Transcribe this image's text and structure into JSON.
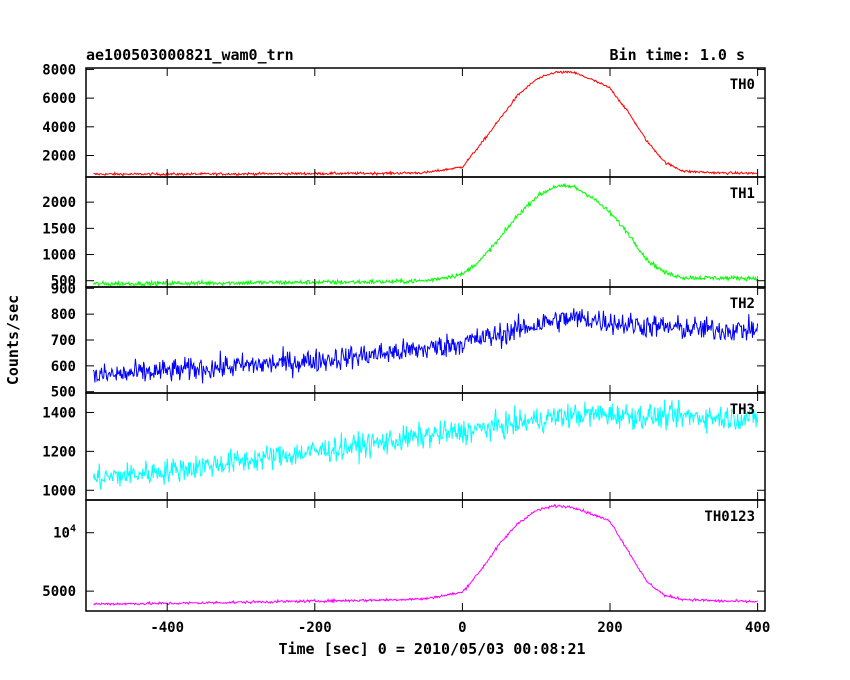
{
  "header": {
    "title": "ae100503000821_wam0_trn",
    "bin_time": "Bin time: 1.0 s"
  },
  "axes": {
    "xlabel": "Time [sec] 0 = 2010/05/03 00:08:21",
    "ylabel": "Counts/sec"
  },
  "chart_data": {
    "type": "line",
    "title": "ae100503000821_wam0_trn",
    "subtitle": "Bin time: 1.0 s",
    "xlabel": "Time [sec] 0 = 2010/05/03 00:08:21",
    "ylabel": "Counts/sec",
    "xlim": [
      -510,
      410
    ],
    "x_ticks": [
      "-400",
      "-200",
      "0",
      "200",
      "400"
    ],
    "grid": false,
    "legend": "none",
    "x_sample": [
      -500,
      -400,
      -300,
      -200,
      -100,
      -50,
      0,
      25,
      50,
      75,
      100,
      125,
      150,
      175,
      200,
      225,
      250,
      275,
      300,
      350,
      400
    ],
    "panels": [
      {
        "name": "TH0",
        "color": "#ff0000",
        "ylim": [
          500,
          8100
        ],
        "y_ticks": [
          "2000",
          "4000",
          "6000",
          "8000"
        ],
        "y_profile": [
          700,
          700,
          720,
          740,
          760,
          800,
          1200,
          2800,
          4500,
          6200,
          7300,
          7800,
          7800,
          7300,
          6700,
          5000,
          3000,
          1500,
          900,
          780,
          760
        ],
        "noise": 60
      },
      {
        "name": "TH1",
        "color": "#00ff00",
        "ylim": [
          380,
          2480
        ],
        "y_ticks": [
          "500",
          "1000",
          "1500",
          "2000"
        ],
        "y_profile": [
          440,
          450,
          460,
          470,
          480,
          500,
          620,
          900,
          1300,
          1750,
          2100,
          2300,
          2300,
          2100,
          1800,
          1400,
          900,
          650,
          560,
          550,
          550
        ],
        "noise": 30
      },
      {
        "name": "TH2",
        "color": "#0000ff",
        "ylim": [
          495,
          905
        ],
        "y_ticks": [
          "500",
          "600",
          "700",
          "800",
          "900"
        ],
        "y_profile": [
          560,
          580,
          600,
          620,
          650,
          665,
          690,
          705,
          720,
          740,
          760,
          775,
          785,
          780,
          770,
          760,
          755,
          750,
          745,
          740,
          740
        ],
        "noise": 32
      },
      {
        "name": "TH3",
        "color": "#00ffff",
        "ylim": [
          950,
          1500
        ],
        "y_ticks": [
          "1000",
          "1200",
          "1400"
        ],
        "y_profile": [
          1060,
          1100,
          1150,
          1200,
          1250,
          1280,
          1300,
          1315,
          1330,
          1345,
          1360,
          1375,
          1385,
          1390,
          1390,
          1385,
          1380,
          1380,
          1380,
          1375,
          1370
        ],
        "noise": 45
      },
      {
        "name": "TH0123",
        "color": "#ff00ff",
        "ylim": [
          3300,
          12800
        ],
        "y_ticks": [
          "5000",
          "10^4"
        ],
        "y_profile": [
          3900,
          3950,
          4050,
          4150,
          4250,
          4350,
          4900,
          6800,
          9000,
          10800,
          11900,
          12300,
          12200,
          11600,
          11000,
          8400,
          5800,
          4600,
          4300,
          4150,
          4100
        ],
        "noise": 80
      }
    ]
  }
}
